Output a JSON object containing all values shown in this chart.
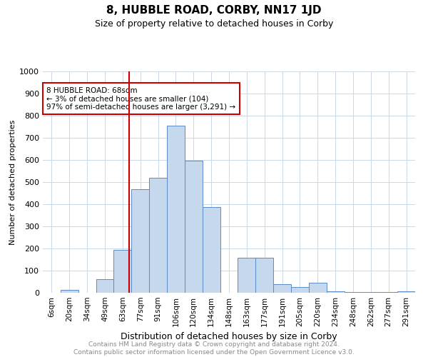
{
  "title": "8, HUBBLE ROAD, CORBY, NN17 1JD",
  "subtitle": "Size of property relative to detached houses in Corby",
  "xlabel": "Distribution of detached houses by size in Corby",
  "ylabel": "Number of detached properties",
  "footer_line1": "Contains HM Land Registry data © Crown copyright and database right 2024.",
  "footer_line2": "Contains public sector information licensed under the Open Government Licence v3.0.",
  "categories": [
    "6sqm",
    "20sqm",
    "34sqm",
    "49sqm",
    "63sqm",
    "77sqm",
    "91sqm",
    "106sqm",
    "120sqm",
    "134sqm",
    "148sqm",
    "163sqm",
    "177sqm",
    "191sqm",
    "205sqm",
    "220sqm",
    "234sqm",
    "248sqm",
    "262sqm",
    "277sqm",
    "291sqm"
  ],
  "values": [
    0,
    13,
    0,
    62,
    193,
    468,
    518,
    756,
    597,
    386,
    0,
    157,
    157,
    38,
    25,
    44,
    7,
    2,
    2,
    2,
    7
  ],
  "bar_color": "#c5d8ee",
  "bar_edge_color": "#5b8bc5",
  "grid_color": "#c8d8e8",
  "property_line_color": "#cc0000",
  "annotation_text": "8 HUBBLE ROAD: 68sqm\n← 3% of detached houses are smaller (104)\n97% of semi-detached houses are larger (3,291) →",
  "annotation_box_color": "#cc0000",
  "ylim": [
    0,
    1000
  ],
  "yticks": [
    0,
    100,
    200,
    300,
    400,
    500,
    600,
    700,
    800,
    900,
    1000
  ],
  "title_fontsize": 11,
  "subtitle_fontsize": 9,
  "ylabel_fontsize": 8,
  "xlabel_fontsize": 9,
  "tick_fontsize": 8,
  "xtick_fontsize": 7.5,
  "footer_fontsize": 6.5
}
